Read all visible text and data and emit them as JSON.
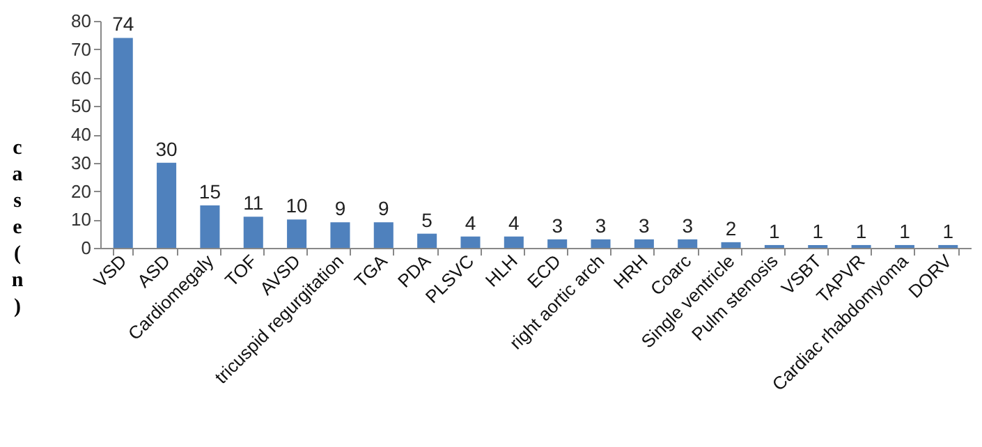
{
  "chart_data": {
    "type": "bar",
    "ylabel": "case(n)",
    "categories": [
      "VSD",
      "ASD",
      "Cardiomegaly",
      "TOF",
      "AVSD",
      "tricuspid regurgitation",
      "TGA",
      "PDA",
      "PLSVC",
      "HLH",
      "ECD",
      "right aortic arch",
      "HRH",
      "Coarc",
      "Single ventricle",
      "Pulm stenosis",
      "VSBT",
      "TAPVR",
      "Cardiac rhabdomyoma",
      "DORV"
    ],
    "values": [
      74,
      30,
      15,
      11,
      10,
      9,
      9,
      5,
      4,
      4,
      3,
      3,
      3,
      3,
      2,
      1,
      1,
      1,
      1,
      1
    ],
    "color": "#4f81bd",
    "ylim": [
      0,
      80
    ],
    "yticks": [
      0,
      10,
      20,
      30,
      40,
      50,
      60,
      70,
      80
    ],
    "grid": false,
    "data_labels": true
  }
}
